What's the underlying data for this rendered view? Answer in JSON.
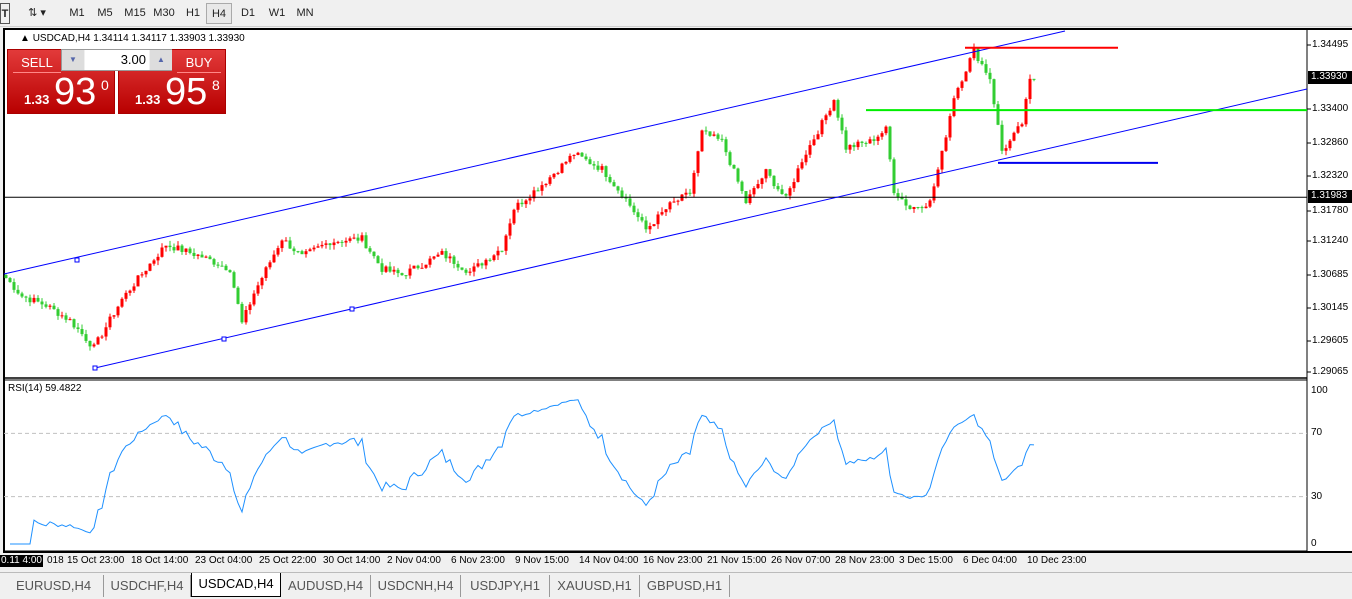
{
  "toolbar": {
    "timeframes": [
      "M1",
      "M5",
      "M15",
      "M30",
      "H1",
      "H4",
      "D1",
      "W1",
      "MN"
    ],
    "active": "H4"
  },
  "chart": {
    "header": "USDCAD,H4  1.34114 1.34117 1.33903 1.33930",
    "price_labels": [
      "1.34495",
      "1.33400",
      "1.32860",
      "1.32320",
      "1.31780",
      "1.31240",
      "1.30685",
      "1.30145",
      "1.29605",
      "1.29065"
    ],
    "current_price": "1.33930",
    "hline_price": "1.31983",
    "time_labels": [
      "15 Oct 23:00",
      "18 Oct 14:00",
      "23 Oct 04:00",
      "25 Oct 22:00",
      "30 Oct 14:00",
      "2 Nov 04:00",
      "6 Nov 23:00",
      "9 Nov 15:00",
      "14 Nov 04:00",
      "16 Nov 23:00",
      "21 Nov 15:00",
      "26 Nov 07:00",
      "28 Nov 23:00",
      "3 Dec 15:00",
      "6 Dec 04:00",
      "10 Dec 23:00"
    ],
    "time_cursor": "0.11 4:00",
    "time_partial": "018",
    "colors": {
      "bull": "#ff0000",
      "bear": "#32cd32",
      "channel": "#0000ff",
      "rsi": "#1e90ff"
    }
  },
  "trade_panel": {
    "sell_label": "SELL",
    "buy_label": "BUY",
    "lot": "3.00",
    "sell_prefix": "1.33",
    "sell_big": "93",
    "sell_sup": "0",
    "buy_prefix": "1.33",
    "buy_big": "95",
    "buy_sup": "8"
  },
  "indicator": {
    "title": "RSI(14) 59.4822",
    "levels": [
      "100",
      "70",
      "30",
      "0"
    ]
  },
  "chart_data": {
    "type": "candlestick",
    "symbol": "USDCAD",
    "timeframe": "H4",
    "ylim": [
      1.29065,
      1.34495
    ],
    "approx_close_path": [
      [
        0,
        1.3065
      ],
      [
        4,
        1.3035
      ],
      [
        10,
        1.302
      ],
      [
        16,
        1.2995
      ],
      [
        22,
        1.295
      ],
      [
        29,
        1.303
      ],
      [
        35,
        1.308
      ],
      [
        40,
        1.312
      ],
      [
        49,
        1.31
      ],
      [
        56,
        1.308
      ],
      [
        59,
        1.299
      ],
      [
        62,
        1.304
      ],
      [
        69,
        1.313
      ],
      [
        74,
        1.31
      ],
      [
        81,
        1.3125
      ],
      [
        89,
        1.313
      ],
      [
        94,
        1.308
      ],
      [
        99,
        1.307
      ],
      [
        109,
        1.3105
      ],
      [
        116,
        1.3075
      ],
      [
        124,
        1.3115
      ],
      [
        127,
        1.318
      ],
      [
        135,
        1.3225
      ],
      [
        142,
        1.327
      ],
      [
        149,
        1.3245
      ],
      [
        155,
        1.3195
      ],
      [
        160,
        1.3145
      ],
      [
        166,
        1.3185
      ],
      [
        171,
        1.3205
      ],
      [
        174,
        1.3305
      ],
      [
        179,
        1.329
      ],
      [
        185,
        1.319
      ],
      [
        190,
        1.324
      ],
      [
        195,
        1.3195
      ],
      [
        199,
        1.326
      ],
      [
        204,
        1.332
      ],
      [
        207,
        1.336
      ],
      [
        210,
        1.328
      ],
      [
        216,
        1.329
      ],
      [
        220,
        1.331
      ],
      [
        222,
        1.321
      ],
      [
        226,
        1.318
      ],
      [
        231,
        1.319
      ],
      [
        234,
        1.327
      ],
      [
        237,
        1.3365
      ],
      [
        242,
        1.344
      ],
      [
        246,
        1.3395
      ],
      [
        249,
        1.3275
      ],
      [
        251,
        1.329
      ],
      [
        254,
        1.332
      ],
      [
        256,
        1.339
      ],
      [
        257,
        1.3393
      ]
    ],
    "lines": {
      "resistance_red": 1.3445,
      "support_green": 1.3342,
      "support_blue": 1.3255,
      "horizontal": 1.31983
    },
    "rsi_levels": [
      70,
      30
    ],
    "rsi_last": 59.4822
  },
  "tabs": [
    "EURUSD,H4",
    "USDCHF,H4",
    "USDCAD,H4",
    "AUDUSD,H4",
    "USDCNH,H4",
    "USDJPY,H1",
    "XAUUSD,H1",
    "GBPUSD,H1"
  ],
  "active_tab": "USDCAD,H4"
}
